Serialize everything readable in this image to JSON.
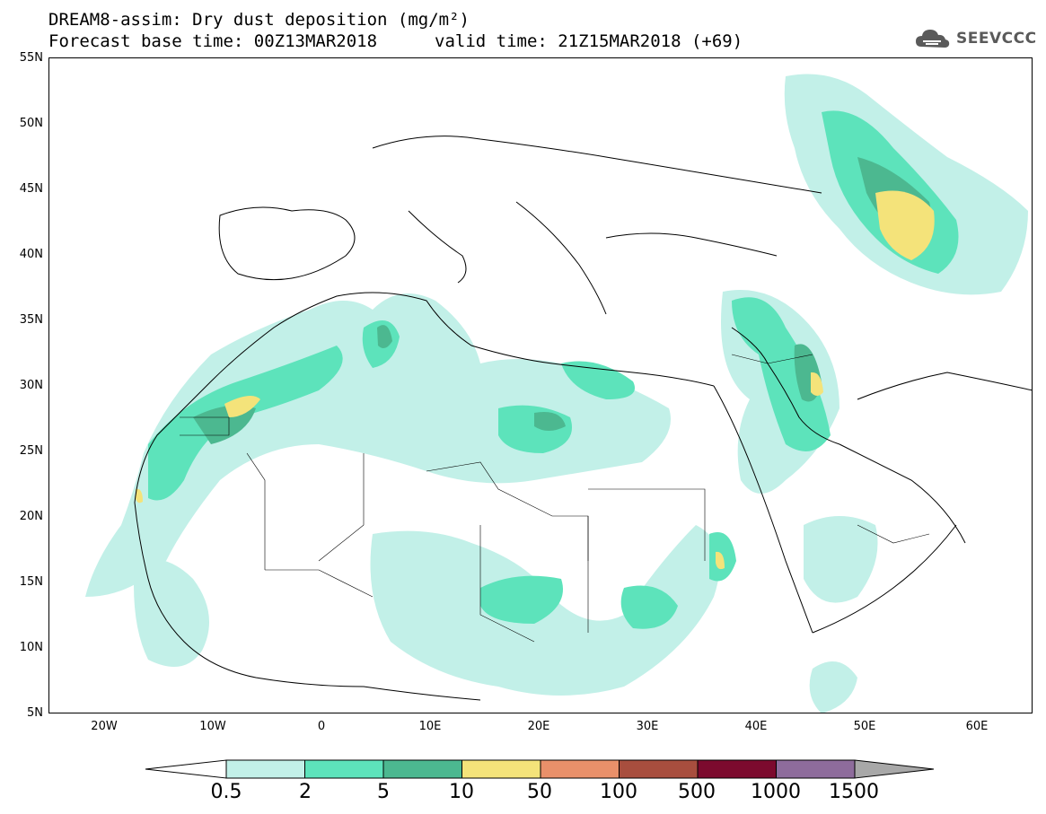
{
  "header": {
    "title": "DREAM8-assim: Dry dust deposition (mg/m²)",
    "base_time": "Forecast base time: 00Z13MAR2018",
    "valid_time": "valid time: 21Z15MAR2018 (+69)"
  },
  "logo": {
    "text": "SEEVCCC",
    "icon": "cloud-icon"
  },
  "map": {
    "region": "North Africa and Middle East",
    "lon_range": [
      -25,
      65
    ],
    "lat_range": [
      5,
      55
    ],
    "lat_labels": [
      "55N",
      "50N",
      "45N",
      "40N",
      "35N",
      "30N",
      "25N",
      "20N",
      "15N",
      "10N",
      "5N"
    ],
    "lon_labels": [
      "20W",
      "10W",
      "0",
      "10E",
      "20E",
      "30E",
      "40E",
      "50E",
      "60E"
    ]
  },
  "legend": {
    "thresholds": [
      "0.5",
      "2",
      "5",
      "10",
      "50",
      "100",
      "500",
      "1000",
      "1500"
    ],
    "colors": [
      "#c2f0e8",
      "#5de3bb",
      "#4cb890",
      "#f4e37a",
      "#e9906a",
      "#a84e3e",
      "#7c0a2e",
      "#8e6c9c",
      "#a8a8a8"
    ]
  }
}
